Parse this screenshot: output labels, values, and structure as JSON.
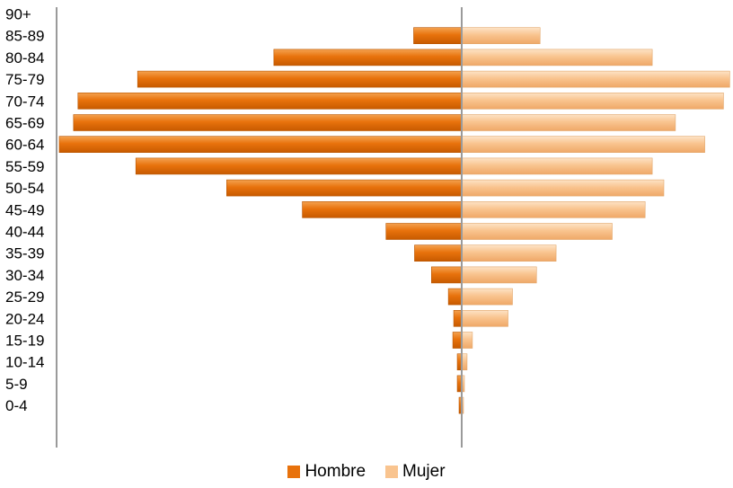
{
  "chart_data": {
    "type": "bar",
    "orientation": "horizontal",
    "layout": "population-pyramid",
    "categories": [
      "90+",
      "85-89",
      "80-84",
      "75-79",
      "70-74",
      "65-69",
      "60-64",
      "55-59",
      "50-54",
      "45-49",
      "40-44",
      "35-39",
      "30-34",
      "25-29",
      "20-24",
      "15-19",
      "10-14",
      "5-9",
      "0-4"
    ],
    "series": [
      {
        "name": "Hombre",
        "color": "#e8720c",
        "values": [
          0,
          54,
          211,
          364,
          431,
          436,
          452,
          366,
          264,
          179,
          85,
          53,
          34,
          15,
          9,
          10,
          5,
          5,
          3
        ]
      },
      {
        "name": "Mujer",
        "color": "#f9c48f",
        "values": [
          0,
          88,
          214,
          301,
          294,
          240,
          273,
          214,
          227,
          206,
          169,
          106,
          84,
          57,
          52,
          12,
          6,
          3,
          2
        ]
      }
    ],
    "axis_range": [
      -455,
      300
    ],
    "grid": false,
    "legend_position": "bottom"
  },
  "legend": {
    "items": [
      {
        "label": "Hombre",
        "color": "#e8720c"
      },
      {
        "label": "Mujer",
        "color": "#f9c48f"
      }
    ]
  }
}
